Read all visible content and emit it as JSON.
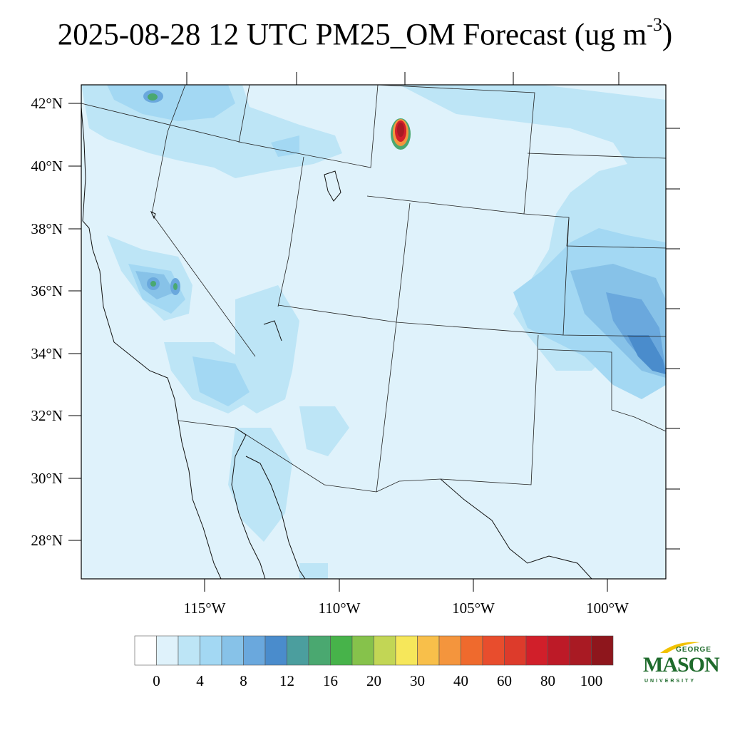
{
  "title": {
    "main": "2025-08-28 12 UTC PM25_OM Forecast (ug m",
    "exp": "-3",
    "close": ")"
  },
  "map": {
    "lat_labels": [
      "42°N",
      "40°N",
      "38°N",
      "36°N",
      "34°N",
      "32°N",
      "30°N",
      "28°N"
    ],
    "lon_labels": [
      "115°W",
      "110°W",
      "105°W",
      "100°W"
    ],
    "background_color": "#dff2fb"
  },
  "colorbar": {
    "labels": [
      "0",
      "4",
      "8",
      "12",
      "16",
      "20",
      "30",
      "40",
      "60",
      "80",
      "100"
    ],
    "colors": [
      "#ffffff",
      "#dff2fb",
      "#bde5f6",
      "#a3d8f3",
      "#87c2e8",
      "#6aa8dd",
      "#4a8ccc",
      "#4b9e9e",
      "#4aa870",
      "#47b34a",
      "#86c24b",
      "#c2d655",
      "#f6e75a",
      "#f8bf4a",
      "#f4953d",
      "#ef6a2d",
      "#e84d2d",
      "#dd3b2b",
      "#d11f2a",
      "#bd1a27",
      "#a91a23",
      "#8e161c"
    ]
  },
  "logo": {
    "top": "GEORGE",
    "main": "MASON",
    "bottom": "UNIVERSITY"
  }
}
